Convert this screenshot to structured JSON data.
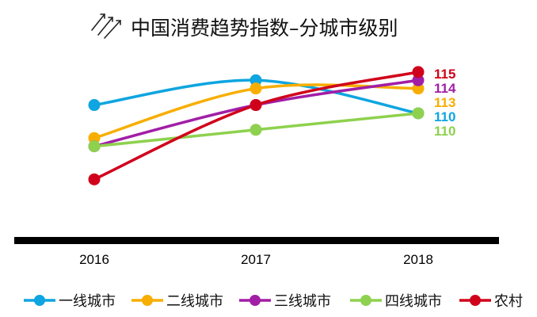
{
  "chart_data": {
    "type": "line",
    "title": "中国消费趋势指数–分城市级别",
    "categories": [
      "2016",
      "2017",
      "2018"
    ],
    "ylim": [
      98,
      117
    ],
    "grid": false,
    "legend_position": "bottom",
    "series": [
      {
        "name": "一线城市",
        "color": "#0EA5E0",
        "values": [
          111,
          114,
          110
        ],
        "end_label": "110"
      },
      {
        "name": "二线城市",
        "color": "#F7AE00",
        "values": [
          107,
          113,
          113
        ],
        "end_label": "113"
      },
      {
        "name": "三线城市",
        "color": "#A11EA6",
        "values": [
          106,
          111,
          114
        ],
        "end_label": "114"
      },
      {
        "name": "四线城市",
        "color": "#8ED14E",
        "values": [
          106,
          108,
          110
        ],
        "end_label": "110"
      },
      {
        "name": "农村",
        "color": "#D0021B",
        "values": [
          102,
          111,
          115
        ],
        "end_label": "115"
      }
    ]
  }
}
